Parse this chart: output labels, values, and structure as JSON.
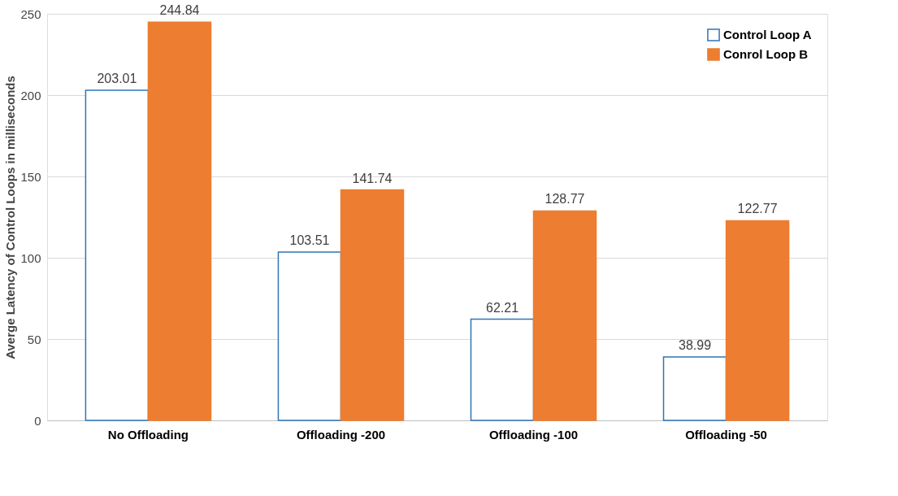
{
  "chart_data": {
    "type": "bar",
    "ylabel": "Averge Latency of Control Loops in milliseconds",
    "categories": [
      "No Offloading",
      "Offloading -200",
      "Offloading -100",
      "Offloading -50"
    ],
    "series": [
      {
        "name": "Control Loop A",
        "color": "#2e75b6",
        "values": [
          203.01,
          103.51,
          62.21,
          38.99
        ]
      },
      {
        "name": "Conrol Loop B",
        "color": "#ed7d31",
        "values": [
          244.84,
          141.74,
          128.77,
          122.77
        ]
      }
    ],
    "ylim": [
      0,
      250
    ],
    "yticks": [
      0,
      50,
      100,
      150,
      200,
      250
    ],
    "grid": "y",
    "legend": "top right",
    "data_labels": true
  }
}
